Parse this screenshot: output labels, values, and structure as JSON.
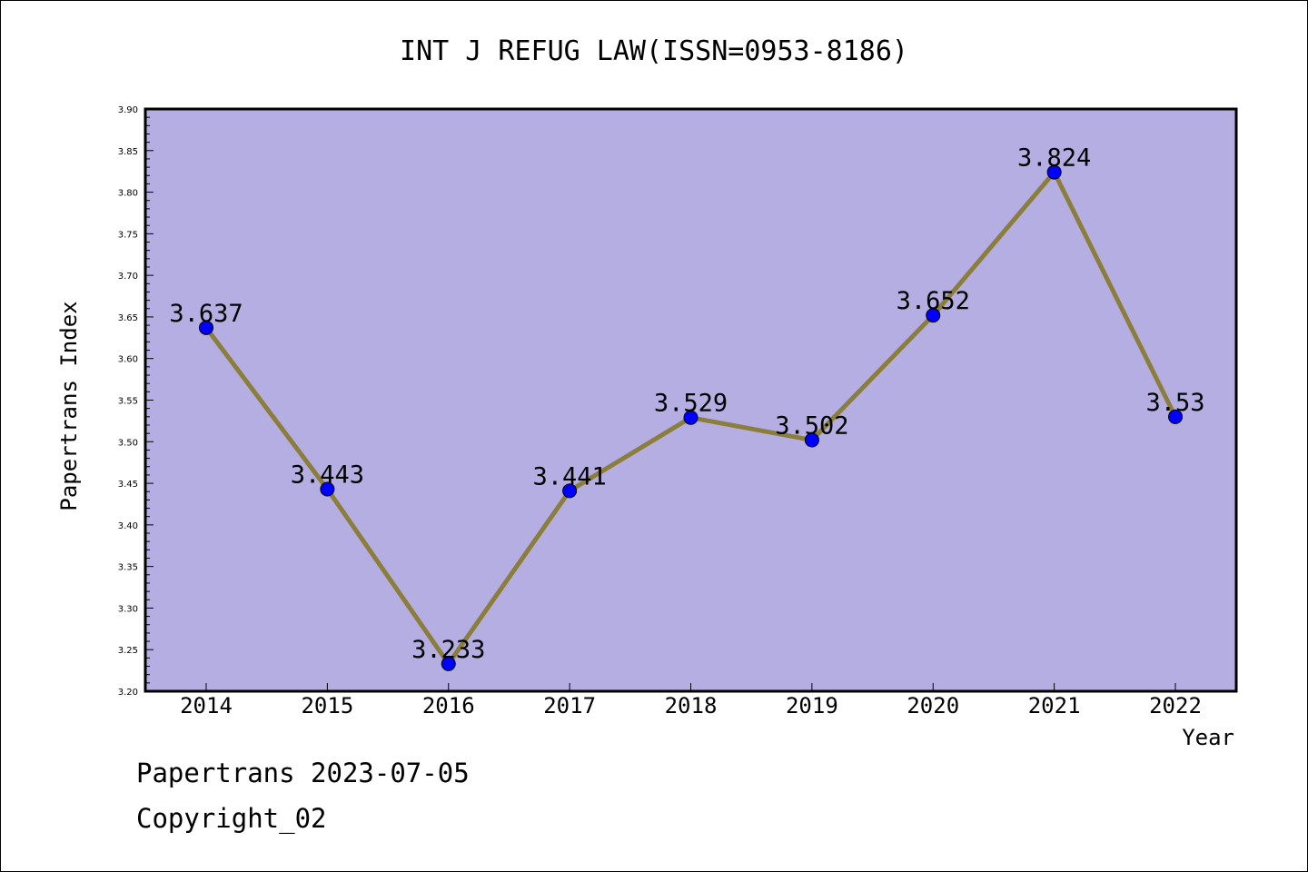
{
  "chart_data": {
    "type": "line",
    "title": "INT J REFUG LAW(ISSN=0953-8186)",
    "xlabel": "Year",
    "ylabel": "Papertrans Index",
    "categories": [
      "2014",
      "2015",
      "2016",
      "2017",
      "2018",
      "2019",
      "2020",
      "2021",
      "2022"
    ],
    "values": [
      3.637,
      3.443,
      3.233,
      3.441,
      3.529,
      3.502,
      3.652,
      3.824,
      3.53
    ],
    "data_labels": [
      "3.637",
      "3.443",
      "3.233",
      "3.441",
      "3.529",
      "3.502",
      "3.652",
      "3.824",
      "3.53"
    ],
    "ylim": [
      3.2,
      3.9
    ],
    "yticks": [
      "3.20",
      "3.25",
      "3.30",
      "3.35",
      "3.40",
      "3.45",
      "3.50",
      "3.55",
      "3.60",
      "3.65",
      "3.70",
      "3.75",
      "3.80",
      "3.85",
      "3.90"
    ],
    "grid": false,
    "colors": {
      "plot_background": "#b4aee2",
      "line": "#8b7d3a",
      "marker": "#0000ff"
    }
  },
  "footer": {
    "line1": "Papertrans 2023-07-05",
    "line2": "Copyright_02"
  }
}
